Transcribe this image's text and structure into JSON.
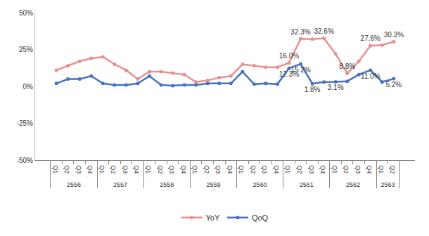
{
  "chart_data": {
    "type": "line",
    "categories": [
      "Q1",
      "Q2",
      "Q3",
      "Q4",
      "Q1",
      "Q2",
      "Q3",
      "Q4",
      "Q1",
      "Q2",
      "Q3",
      "Q4",
      "Q1",
      "Q2",
      "Q3",
      "Q4",
      "Q1",
      "Q2",
      "Q3",
      "Q4",
      "Q1",
      "Q2",
      "Q3",
      "Q4",
      "Q1",
      "Q2",
      "Q3",
      "Q4",
      "Q1",
      "Q2"
    ],
    "category_groups": [
      "2556",
      "2556",
      "2556",
      "2556",
      "2557",
      "2557",
      "2557",
      "2557",
      "2558",
      "2558",
      "2558",
      "2558",
      "2559",
      "2559",
      "2559",
      "2559",
      "2560",
      "2560",
      "2560",
      "2560",
      "2561",
      "2561",
      "2561",
      "2561",
      "2562",
      "2562",
      "2562",
      "2562",
      "2563",
      "2563"
    ],
    "series": [
      {
        "name": "YoY",
        "color": "#e8908f",
        "marker": "circle",
        "values": [
          11,
          14,
          17,
          19,
          20,
          15,
          11,
          5,
          10,
          10,
          9,
          8,
          3,
          4,
          6,
          7,
          15,
          14,
          13,
          13,
          16.0,
          32.3,
          32,
          32.6,
          22,
          8.8,
          17,
          27.6,
          28,
          30.3
        ],
        "value_labels": [
          null,
          null,
          null,
          null,
          null,
          null,
          null,
          null,
          null,
          null,
          null,
          null,
          null,
          null,
          null,
          null,
          null,
          null,
          null,
          null,
          "16.0%",
          "32.3%",
          null,
          "32.6%",
          null,
          "8.8%",
          null,
          "27.6%",
          null,
          "30.3%"
        ]
      },
      {
        "name": "QoQ",
        "color": "#4472c4",
        "marker": "circle",
        "values": [
          2,
          5,
          5,
          7,
          2,
          1,
          1,
          2,
          7,
          1,
          0.5,
          1,
          1,
          2,
          2,
          2,
          10,
          1.5,
          2,
          1.5,
          12.3,
          15.2,
          1.8,
          3,
          3.1,
          3.5,
          8,
          11.0,
          3,
          5.2
        ],
        "value_labels": [
          null,
          null,
          null,
          null,
          null,
          null,
          null,
          null,
          null,
          null,
          null,
          null,
          null,
          null,
          null,
          null,
          null,
          null,
          null,
          null,
          "12.3%",
          "15.2%",
          "1.8%",
          null,
          "3.1%",
          null,
          null,
          "11.0%",
          null,
          "5.2%"
        ]
      }
    ],
    "ylim": [
      -50,
      50
    ],
    "yticks": [
      {
        "value": -50,
        "label": "-50%"
      },
      {
        "value": -25,
        "label": "-25%"
      },
      {
        "value": 0,
        "label": "0%"
      },
      {
        "value": 25,
        "label": "25%"
      },
      {
        "value": 50,
        "label": "50%"
      }
    ],
    "grid": false,
    "legend": "bottom",
    "data_labels": true
  }
}
